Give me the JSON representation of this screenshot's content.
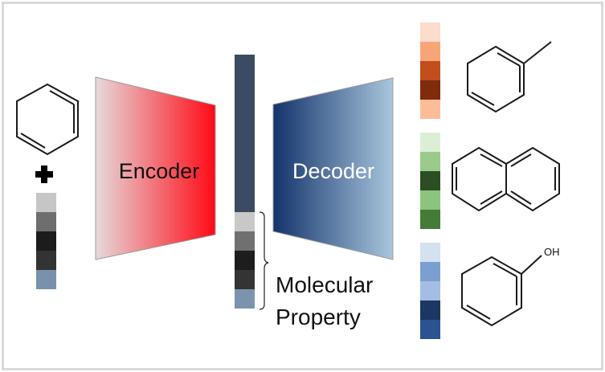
{
  "labels": {
    "encoder": "Encoder",
    "decoder": "Decoder",
    "property_line1": "Molecular",
    "property_line2": "Property",
    "oh": "OH"
  },
  "molecules": {
    "input": "benzene-icon",
    "outputs": [
      "toluene-icon",
      "naphthalene-icon",
      "phenol-icon"
    ]
  },
  "colors": {
    "encoder_gradient": [
      "#e6dada",
      "#ff0a17"
    ],
    "decoder_gradient": [
      "#13336b",
      "#a9c6dc"
    ],
    "latent_bar": "#3b4b63",
    "input_property_cells": [
      "#c6c6c6",
      "#6e6e6e",
      "#1c1c1c",
      "#333333",
      "#7991ab"
    ],
    "latent_property_cells": [
      "#c8c8c8",
      "#707070",
      "#1d1d1d",
      "#343434",
      "#7b93ad"
    ],
    "output_orange_cells": [
      "#fcdcca",
      "#f7a577",
      "#c24e1b",
      "#7f2b0c",
      "#fbbd98"
    ],
    "output_green_cells": [
      "#dcefd6",
      "#9acb8a",
      "#2b4e23",
      "#8cc47f",
      "#437c37"
    ],
    "output_blue_cells": [
      "#d4e1ef",
      "#7c9fd1",
      "#a4bde3",
      "#1b3763",
      "#2c5391"
    ]
  }
}
